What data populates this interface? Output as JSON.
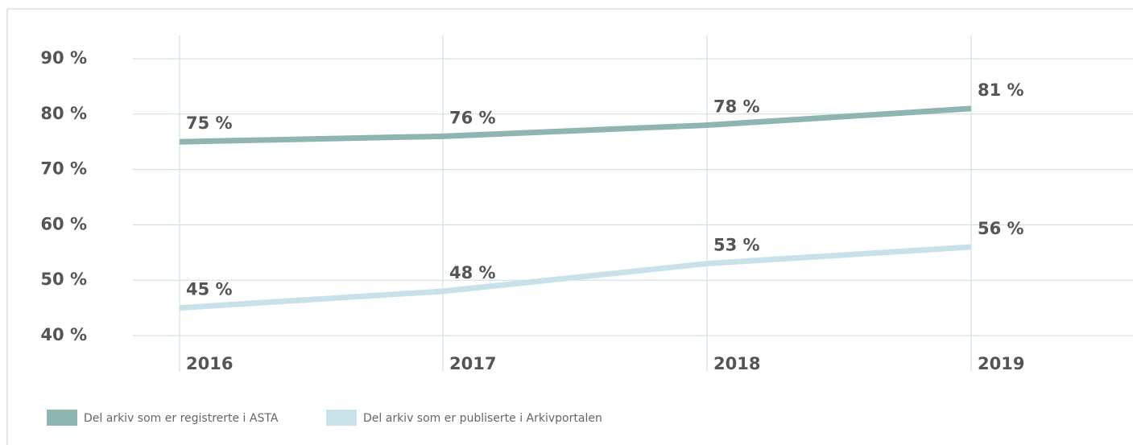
{
  "chart_data": {
    "type": "line",
    "categories": [
      "2016",
      "2017",
      "2018",
      "2019"
    ],
    "series": [
      {
        "name": "Del arkiv som er registrerte i ASTA",
        "color": "#8fb5b1",
        "values": [
          75,
          76,
          78,
          81
        ],
        "value_labels": [
          "75 %",
          "76 %",
          "78 %",
          "81 %"
        ]
      },
      {
        "name": "Del arkiv som er publiserte i Arkivportalen",
        "color": "#c9e2ea",
        "values": [
          45,
          48,
          53,
          56
        ],
        "value_labels": [
          "45 %",
          "48 %",
          "53 %",
          "56 %"
        ]
      }
    ],
    "ylim": [
      40,
      90
    ],
    "yticks": [
      {
        "value": 40,
        "label": "40 %"
      },
      {
        "value": 50,
        "label": "50 %"
      },
      {
        "value": 60,
        "label": "60 %"
      },
      {
        "value": 70,
        "label": "70 %"
      },
      {
        "value": 80,
        "label": "80 %"
      },
      {
        "value": 90,
        "label": "90 %"
      }
    ],
    "grid": true
  }
}
